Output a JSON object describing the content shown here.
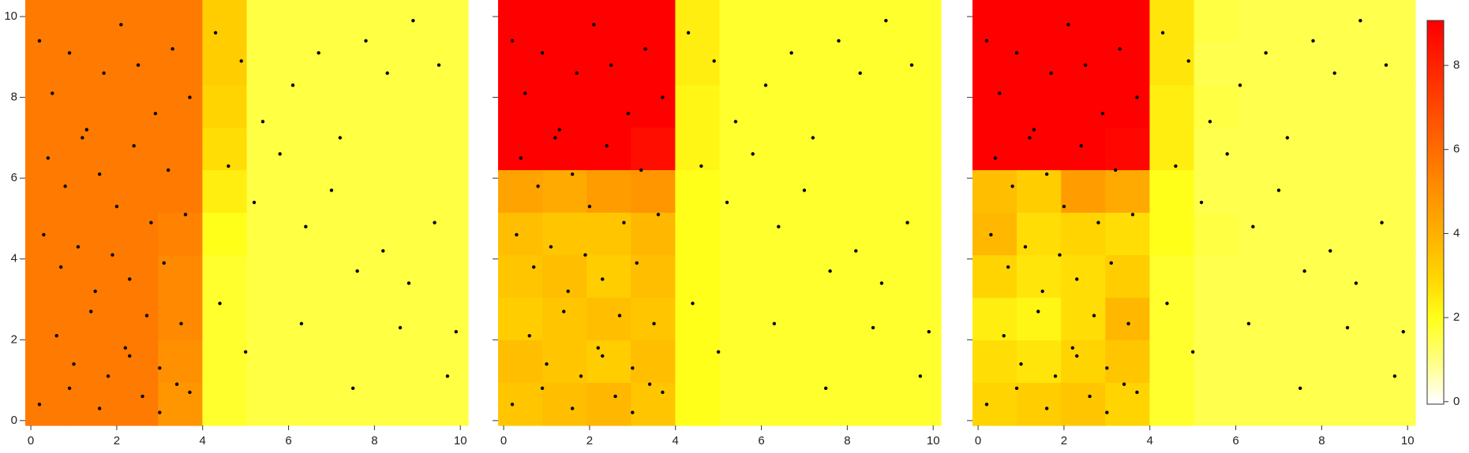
{
  "chart_data": [
    {
      "type": "heatmap",
      "xlim": [
        -0.13,
        10.18
      ],
      "ylim": [
        -0.12,
        10.41
      ],
      "xticks": [
        0,
        2,
        4,
        6,
        8,
        10
      ],
      "yticks": [
        0,
        2,
        4,
        6,
        8,
        10
      ],
      "ytick_labels": true,
      "z": [
        [
          5.6,
          5.6,
          5.6,
          5.6,
          3.2,
          1.6,
          1.6,
          1.6,
          1.6,
          1.6
        ],
        [
          5.6,
          5.6,
          5.6,
          5.6,
          3.2,
          1.6,
          1.6,
          1.6,
          1.6,
          1.6
        ],
        [
          5.6,
          5.6,
          5.6,
          5.6,
          3.0,
          1.6,
          1.6,
          1.6,
          1.6,
          1.6
        ],
        [
          5.6,
          5.6,
          5.6,
          5.6,
          2.8,
          1.6,
          1.6,
          1.6,
          1.6,
          1.6
        ],
        [
          5.6,
          5.6,
          5.6,
          5.6,
          2.4,
          1.6,
          1.6,
          1.6,
          1.6,
          1.6
        ],
        [
          5.6,
          5.6,
          5.6,
          5.4,
          2.0,
          1.6,
          1.6,
          1.6,
          1.6,
          1.6
        ],
        [
          5.6,
          5.6,
          5.6,
          5.2,
          1.8,
          1.6,
          1.6,
          1.6,
          1.6,
          1.6
        ],
        [
          5.6,
          5.6,
          5.6,
          5.2,
          1.8,
          1.6,
          1.6,
          1.6,
          1.6,
          1.6
        ],
        [
          5.6,
          5.6,
          5.6,
          5.0,
          1.8,
          1.6,
          1.6,
          1.6,
          1.6,
          1.6
        ],
        [
          5.6,
          5.6,
          5.6,
          4.8,
          1.8,
          1.6,
          1.6,
          1.6,
          1.6,
          1.6
        ]
      ],
      "points": {
        "x": [
          0.2,
          0.5,
          0.9,
          1.3,
          1.7,
          2.1,
          2.5,
          2.9,
          3.3,
          3.7,
          0.4,
          0.8,
          1.2,
          1.6,
          2.0,
          2.4,
          2.8,
          3.2,
          3.6,
          0.3,
          0.7,
          1.1,
          1.5,
          1.9,
          2.3,
          2.7,
          3.1,
          3.5,
          0.6,
          1.0,
          1.4,
          1.8,
          2.2,
          2.6,
          3.0,
          3.4,
          0.2,
          0.9,
          1.6,
          2.3,
          3.0,
          3.7,
          4.3,
          4.9,
          5.4,
          6.1,
          6.7,
          7.2,
          7.8,
          8.3,
          8.9,
          9.5,
          4.6,
          5.2,
          5.8,
          6.4,
          7.0,
          7.6,
          8.2,
          8.8,
          9.4,
          9.9,
          4.4,
          5.0,
          6.3,
          7.5,
          8.6,
          9.7
        ],
        "y": [
          9.4,
          8.1,
          9.1,
          7.2,
          8.6,
          9.8,
          8.8,
          7.6,
          9.2,
          8.0,
          6.5,
          5.8,
          7.0,
          6.1,
          5.3,
          6.8,
          4.9,
          6.2,
          5.1,
          4.6,
          3.8,
          4.3,
          3.2,
          4.1,
          3.5,
          2.6,
          3.9,
          2.4,
          2.1,
          1.4,
          2.7,
          1.1,
          1.8,
          0.6,
          1.3,
          0.9,
          0.4,
          0.8,
          0.3,
          1.6,
          0.2,
          0.7,
          9.6,
          8.9,
          7.4,
          8.3,
          9.1,
          7.0,
          9.4,
          8.6,
          9.9,
          8.8,
          6.3,
          5.4,
          6.6,
          4.8,
          5.7,
          3.7,
          4.2,
          3.4,
          4.9,
          2.2,
          2.9,
          1.7,
          2.4,
          0.8,
          2.3,
          1.1
        ]
      }
    },
    {
      "type": "heatmap",
      "xlim": [
        -0.13,
        10.18
      ],
      "ylim": [
        -0.12,
        10.41
      ],
      "xticks": [
        0,
        2,
        4,
        6,
        8,
        10
      ],
      "yticks": [
        0,
        2,
        4,
        6,
        8,
        10
      ],
      "ytick_labels": false,
      "z": [
        [
          9,
          9,
          9,
          9,
          2.4,
          1.8,
          1.8,
          1.8,
          1.8,
          1.8
        ],
        [
          9,
          9,
          9,
          9,
          2.4,
          1.8,
          1.8,
          1.8,
          1.8,
          1.8
        ],
        [
          9,
          9,
          9,
          9,
          2.2,
          1.8,
          1.8,
          1.8,
          1.8,
          1.8
        ],
        [
          9,
          9,
          9,
          8.6,
          2.2,
          1.8,
          1.8,
          1.8,
          1.8,
          1.8
        ],
        [
          4.4,
          4.2,
          4.6,
          4.8,
          2.0,
          1.8,
          1.8,
          1.8,
          1.8,
          1.8
        ],
        [
          3.6,
          3.4,
          3.4,
          3.8,
          2.0,
          1.8,
          1.8,
          1.8,
          1.8,
          1.8
        ],
        [
          3.4,
          3.6,
          3.2,
          3.6,
          2.0,
          1.8,
          1.8,
          1.8,
          1.8,
          1.8
        ],
        [
          3.2,
          3.4,
          3.6,
          3.4,
          2.0,
          1.8,
          1.8,
          1.8,
          1.8,
          1.8
        ],
        [
          3.6,
          3.4,
          3.2,
          3.6,
          2.0,
          1.8,
          1.8,
          1.8,
          1.8,
          1.8
        ],
        [
          3.4,
          3.6,
          3.8,
          3.4,
          2.0,
          1.8,
          1.8,
          1.8,
          1.8,
          1.8
        ]
      ]
    },
    {
      "type": "heatmap",
      "xlim": [
        -0.13,
        10.18
      ],
      "ylim": [
        -0.12,
        10.41
      ],
      "xticks": [
        0,
        2,
        4,
        6,
        8,
        10
      ],
      "yticks": [
        0,
        2,
        4,
        6,
        8,
        10
      ],
      "ytick_labels": false,
      "z": [
        [
          9,
          9,
          9,
          9,
          2.6,
          1.6,
          1.5,
          1.5,
          1.5,
          1.5
        ],
        [
          9,
          9,
          9,
          9,
          2.6,
          1.5,
          1.5,
          1.5,
          1.5,
          1.5
        ],
        [
          9,
          9,
          9,
          9,
          2.4,
          1.6,
          1.5,
          1.5,
          1.5,
          1.5
        ],
        [
          9,
          9,
          9,
          8.8,
          2.4,
          1.5,
          1.5,
          1.5,
          1.5,
          1.5
        ],
        [
          3.6,
          3.2,
          4.6,
          4.2,
          2.0,
          1.5,
          1.5,
          1.5,
          1.5,
          1.5
        ],
        [
          3.8,
          2.8,
          3.0,
          2.8,
          2.0,
          1.6,
          1.5,
          1.5,
          1.5,
          1.5
        ],
        [
          3.0,
          2.6,
          2.8,
          3.2,
          1.8,
          1.5,
          1.5,
          1.5,
          1.5,
          1.5
        ],
        [
          2.4,
          2.2,
          2.8,
          3.8,
          1.8,
          1.5,
          1.5,
          1.5,
          1.5,
          1.5
        ],
        [
          2.8,
          2.6,
          3.0,
          3.4,
          1.8,
          1.5,
          1.5,
          1.5,
          1.5,
          1.5
        ],
        [
          3.0,
          3.2,
          3.4,
          3.0,
          1.8,
          1.5,
          1.5,
          1.5,
          1.5,
          1.5
        ]
      ]
    },
    {
      "type": "colorbar",
      "zlim": [
        -0.06,
        9.07
      ],
      "ticks": [
        0,
        2,
        4,
        6,
        8
      ],
      "colorscale": [
        [
          0,
          "#ffffff"
        ],
        [
          1,
          "#ffff80"
        ],
        [
          2,
          "#ffff1a"
        ],
        [
          3,
          "#ffd400"
        ],
        [
          4,
          "#ffb000"
        ],
        [
          5,
          "#ff9000"
        ],
        [
          6,
          "#ff6c00"
        ],
        [
          7,
          "#ff4800"
        ],
        [
          8,
          "#ff2400"
        ],
        [
          9,
          "#ff0000"
        ]
      ]
    }
  ]
}
